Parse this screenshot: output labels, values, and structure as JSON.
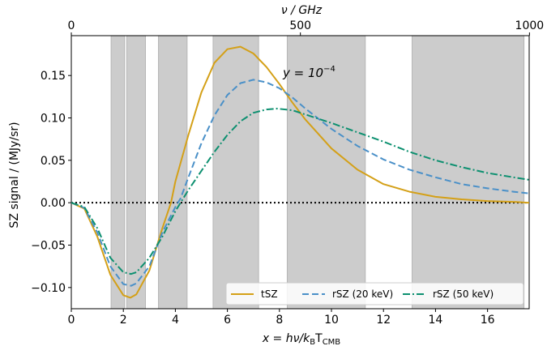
{
  "chart_data": {
    "type": "line",
    "xlabel_prefix": "x = hν/k",
    "xlabel_sub1": "B",
    "xlabel_mid": "T",
    "xlabel_sub2": "CMB",
    "ylabel": "SZ signal / (MJy/sr)",
    "top_xlabel": "ν / GHz",
    "annotation_y": "y = 10",
    "annotation_exp": "−4",
    "xlim": [
      0,
      17.6
    ],
    "ylim": [
      -0.125,
      0.197
    ],
    "x_ticks": [
      0,
      2,
      4,
      6,
      8,
      10,
      12,
      14,
      16
    ],
    "y_ticks": [
      {
        "value": -0.1,
        "label": "−0.10"
      },
      {
        "value": -0.05,
        "label": "−0.05"
      },
      {
        "value": 0.0,
        "label": "0.00"
      },
      {
        "value": 0.05,
        "label": "0.05"
      },
      {
        "value": 0.1,
        "label": "0.10"
      },
      {
        "value": 0.15,
        "label": "0.15"
      }
    ],
    "top_ticks": [
      {
        "ghz": 0,
        "label": "0"
      },
      {
        "ghz": 500,
        "label": "500"
      },
      {
        "ghz": 1000,
        "label": "1000"
      }
    ],
    "ghz_per_x": 56.78,
    "bands": [
      [
        1.53,
        2.05
      ],
      [
        2.13,
        2.85
      ],
      [
        3.35,
        4.45
      ],
      [
        5.45,
        7.2
      ],
      [
        8.3,
        11.3
      ],
      [
        13.1,
        17.4
      ]
    ],
    "zero_line": true,
    "legend_position": "lower-right",
    "series": [
      {
        "name": "tSZ",
        "color": "#d4a017",
        "dash": "solid",
        "x": [
          0,
          0.5,
          1.0,
          1.5,
          2.0,
          2.27,
          2.5,
          3.0,
          3.5,
          3.83,
          4.0,
          4.5,
          5.0,
          5.5,
          6.0,
          6.5,
          7.0,
          7.5,
          8.0,
          8.5,
          9.0,
          10.0,
          11.0,
          12.0,
          13.0,
          14.0,
          15.0,
          16.0,
          17.0,
          17.6
        ],
        "y": [
          0,
          -0.007,
          -0.04,
          -0.085,
          -0.109,
          -0.112,
          -0.108,
          -0.08,
          -0.03,
          0.0,
          0.025,
          0.08,
          0.13,
          0.165,
          0.181,
          0.184,
          0.176,
          0.16,
          0.14,
          0.118,
          0.098,
          0.064,
          0.039,
          0.022,
          0.013,
          0.007,
          0.004,
          0.002,
          0.001,
          0.0
        ]
      },
      {
        "name": "rSZ (20 keV)",
        "color": "#4a90c8",
        "dash": "dashed",
        "x": [
          0,
          0.5,
          1.0,
          1.5,
          2.0,
          2.3,
          2.5,
          3.0,
          3.5,
          4.0,
          4.2,
          4.5,
          5.0,
          5.5,
          6.0,
          6.5,
          7.0,
          7.5,
          8.0,
          8.5,
          9.0,
          10.0,
          11.0,
          12.0,
          13.0,
          14.0,
          15.0,
          16.0,
          17.0,
          17.6
        ],
        "y": [
          0,
          -0.006,
          -0.035,
          -0.075,
          -0.096,
          -0.098,
          -0.095,
          -0.075,
          -0.035,
          -0.005,
          0.005,
          0.03,
          0.07,
          0.103,
          0.127,
          0.141,
          0.145,
          0.142,
          0.135,
          0.124,
          0.111,
          0.087,
          0.067,
          0.051,
          0.039,
          0.03,
          0.022,
          0.017,
          0.013,
          0.011
        ]
      },
      {
        "name": "rSZ (50 keV)",
        "color": "#0d9070",
        "dash": "dashdot",
        "x": [
          0,
          0.5,
          1.0,
          1.5,
          2.0,
          2.3,
          2.5,
          3.0,
          3.5,
          4.0,
          4.5,
          4.9,
          5.5,
          6.0,
          6.5,
          7.0,
          7.5,
          7.9,
          8.5,
          9.0,
          10.0,
          11.0,
          12.0,
          13.0,
          14.0,
          15.0,
          16.0,
          17.0,
          17.6
        ],
        "y": [
          0,
          -0.005,
          -0.03,
          -0.065,
          -0.082,
          -0.084,
          -0.082,
          -0.065,
          -0.04,
          -0.01,
          0.015,
          0.033,
          0.06,
          0.08,
          0.096,
          0.106,
          0.11,
          0.111,
          0.109,
          0.104,
          0.094,
          0.083,
          0.072,
          0.06,
          0.05,
          0.042,
          0.035,
          0.03,
          0.027
        ]
      }
    ]
  }
}
